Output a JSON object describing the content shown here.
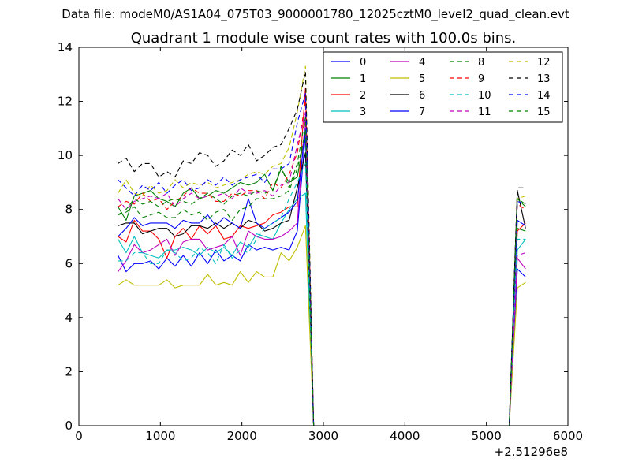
{
  "figure": {
    "suptitle": "Data file: modeM0/AS1A04_075T03_9000001780_12025cztM0_level2_quad_clean.evt"
  },
  "chart_data": {
    "type": "line",
    "title": "Quadrant 1 module wise count rates with 100.0s bins.",
    "xlabel": "",
    "ylabel": "",
    "xlim": [
      0,
      6000
    ],
    "ylim": [
      0,
      14
    ],
    "x_offset_label": "+2.51296e8",
    "xticks": [
      0,
      1000,
      2000,
      3000,
      4000,
      5000,
      6000
    ],
    "yticks": [
      0,
      2,
      4,
      6,
      8,
      10,
      12,
      14
    ],
    "grid": false,
    "legend_position": "top-right",
    "legend_columns": 4,
    "x": [
      480,
      580,
      680,
      780,
      880,
      980,
      1080,
      1180,
      1280,
      1380,
      1480,
      1580,
      1680,
      1780,
      1880,
      1980,
      2080,
      2180,
      2280,
      2380,
      2480,
      2580,
      2680,
      2780,
      2880,
      2980,
      3080,
      3180,
      3280,
      3380,
      3480,
      3580,
      3680,
      3780,
      3880,
      3980,
      4080,
      4180,
      4280,
      4380,
      4480,
      4580,
      4680,
      4780,
      4880,
      4980,
      5080,
      5180,
      5280,
      5380,
      5480
    ],
    "series": [
      {
        "name": "0",
        "color": "#0000ff",
        "dash": "solid",
        "values": [
          6.3,
          5.7,
          6.0,
          6.0,
          6.1,
          5.8,
          6.2,
          5.9,
          6.3,
          5.9,
          6.4,
          6.0,
          6.5,
          6.1,
          6.3,
          6.1,
          6.7,
          6.5,
          6.6,
          6.5,
          6.6,
          6.5,
          7.2,
          10.8,
          0,
          0,
          0,
          0,
          0,
          0,
          0,
          0,
          0,
          0,
          0,
          0,
          0,
          0,
          0,
          0,
          0,
          0,
          0,
          0,
          0,
          0,
          0,
          0,
          0,
          5.8,
          5.5
        ]
      },
      {
        "name": "1",
        "color": "#008000",
        "dash": "solid",
        "values": [
          8.1,
          7.6,
          8.5,
          8.6,
          8.7,
          8.4,
          8.3,
          8.1,
          8.6,
          8.8,
          8.4,
          8.5,
          8.7,
          8.6,
          8.8,
          9.0,
          8.9,
          9.0,
          9.3,
          8.7,
          9.5,
          9.0,
          9.2,
          10.9,
          0,
          0,
          0,
          0,
          0,
          0,
          0,
          0,
          0,
          0,
          0,
          0,
          0,
          0,
          0,
          0,
          0,
          0,
          0,
          0,
          0,
          0,
          0,
          0,
          0,
          7.3,
          7.2
        ]
      },
      {
        "name": "2",
        "color": "#ff0000",
        "dash": "solid",
        "values": [
          7.0,
          6.8,
          7.6,
          7.2,
          7.2,
          6.9,
          6.2,
          7.0,
          7.3,
          6.9,
          7.4,
          7.1,
          7.4,
          6.9,
          7.0,
          7.4,
          7.3,
          7.4,
          7.5,
          7.8,
          7.9,
          8.1,
          8.1,
          12.5,
          0,
          0,
          0,
          0,
          0,
          0,
          0,
          0,
          0,
          0,
          0,
          0,
          0,
          0,
          0,
          0,
          0,
          0,
          0,
          0,
          0,
          0,
          0,
          0,
          0,
          7.2,
          7.5
        ]
      },
      {
        "name": "3",
        "color": "#00bfbf",
        "dash": "solid",
        "values": [
          6.9,
          6.4,
          7.0,
          6.4,
          6.3,
          6.2,
          6.5,
          6.5,
          6.6,
          6.5,
          6.3,
          6.6,
          6.4,
          6.6,
          6.3,
          6.8,
          6.6,
          7.1,
          7.0,
          6.9,
          7.5,
          8.0,
          8.4,
          8.6,
          0,
          0,
          0,
          0,
          0,
          0,
          0,
          0,
          0,
          0,
          0,
          0,
          0,
          0,
          0,
          0,
          0,
          0,
          0,
          0,
          0,
          0,
          0,
          0,
          0,
          6.5,
          6.9
        ]
      },
      {
        "name": "4",
        "color": "#bf00bf",
        "dash": "solid",
        "values": [
          5.7,
          6.1,
          6.7,
          6.4,
          6.5,
          6.7,
          6.9,
          6.3,
          6.8,
          6.9,
          6.9,
          6.5,
          6.6,
          6.7,
          7.0,
          6.3,
          7.2,
          7.0,
          6.9,
          6.9,
          7.0,
          7.2,
          7.5,
          11.5,
          0,
          0,
          0,
          0,
          0,
          0,
          0,
          0,
          0,
          0,
          0,
          0,
          0,
          0,
          0,
          0,
          0,
          0,
          0,
          0,
          0,
          0,
          0,
          0,
          0,
          6.2,
          5.8
        ]
      },
      {
        "name": "5",
        "color": "#bfbf00",
        "dash": "solid",
        "values": [
          5.2,
          5.4,
          5.2,
          5.2,
          5.2,
          5.2,
          5.4,
          5.1,
          5.2,
          5.2,
          5.2,
          5.6,
          5.2,
          5.3,
          5.2,
          5.7,
          5.3,
          5.7,
          5.5,
          5.5,
          6.4,
          6.1,
          6.6,
          7.4,
          0,
          0,
          0,
          0,
          0,
          0,
          0,
          0,
          0,
          0,
          0,
          0,
          0,
          0,
          0,
          0,
          0,
          0,
          0,
          0,
          0,
          0,
          0,
          0,
          0,
          5.1,
          5.3
        ]
      },
      {
        "name": "6",
        "color": "#000000",
        "dash": "solid",
        "values": [
          7.4,
          7.5,
          7.5,
          7.1,
          7.2,
          7.3,
          7.3,
          7.0,
          7.1,
          7.4,
          7.4,
          7.3,
          7.5,
          7.3,
          7.5,
          7.3,
          7.6,
          7.5,
          7.2,
          7.3,
          7.5,
          7.6,
          8.8,
          10.1,
          0,
          0,
          0,
          0,
          0,
          0,
          0,
          0,
          0,
          0,
          0,
          0,
          0,
          0,
          0,
          0,
          0,
          0,
          0,
          0,
          0,
          0,
          0,
          0,
          0,
          8.7,
          7.3
        ]
      },
      {
        "name": "7",
        "color": "#0000ff",
        "dash": "solid",
        "values": [
          7.0,
          7.3,
          7.7,
          7.4,
          7.5,
          7.5,
          7.5,
          7.3,
          7.6,
          7.5,
          7.5,
          7.8,
          7.4,
          7.7,
          7.5,
          7.3,
          8.4,
          7.5,
          7.3,
          7.5,
          7.7,
          7.9,
          8.3,
          11.0,
          0,
          0,
          0,
          0,
          0,
          0,
          0,
          0,
          0,
          0,
          0,
          0,
          0,
          0,
          0,
          0,
          0,
          0,
          0,
          0,
          0,
          0,
          0,
          0,
          0,
          7.6,
          7.4
        ]
      },
      {
        "name": "8",
        "color": "#008000",
        "dash": "dashed",
        "values": [
          7.8,
          7.9,
          8.1,
          7.7,
          7.8,
          7.9,
          7.7,
          7.7,
          8.0,
          7.8,
          7.9,
          7.6,
          7.9,
          8.0,
          7.6,
          8.0,
          8.1,
          8.4,
          8.4,
          8.4,
          8.5,
          8.7,
          9.5,
          10.9,
          0,
          0,
          0,
          0,
          0,
          0,
          0,
          0,
          0,
          0,
          0,
          0,
          0,
          0,
          0,
          0,
          0,
          0,
          0,
          0,
          0,
          0,
          0,
          0,
          0,
          8.4,
          8.2
        ]
      },
      {
        "name": "9",
        "color": "#ff0000",
        "dash": "dashed",
        "values": [
          8.1,
          8.3,
          8.2,
          8.6,
          8.3,
          8.4,
          8.0,
          8.3,
          8.5,
          8.8,
          8.6,
          8.6,
          8.3,
          8.3,
          8.6,
          8.5,
          8.7,
          8.7,
          8.4,
          9.0,
          8.8,
          9.3,
          10.1,
          12.0,
          0,
          0,
          0,
          0,
          0,
          0,
          0,
          0,
          0,
          0,
          0,
          0,
          0,
          0,
          0,
          0,
          0,
          0,
          0,
          0,
          0,
          0,
          0,
          0,
          0,
          8.2,
          8.0
        ]
      },
      {
        "name": "10",
        "color": "#00bfbf",
        "dash": "dashed",
        "values": [
          6.1,
          6.1,
          6.4,
          6.4,
          6.0,
          6.0,
          6.5,
          6.4,
          6.1,
          6.2,
          6.6,
          6.4,
          6.0,
          6.7,
          6.2,
          6.5,
          6.4,
          6.9,
          7.3,
          7.5,
          7.7,
          8.4,
          9.0,
          9.7,
          0,
          0,
          0,
          0,
          0,
          0,
          0,
          0,
          0,
          0,
          0,
          0,
          0,
          0,
          0,
          0,
          0,
          0,
          0,
          0,
          0,
          0,
          0,
          0,
          0,
          6.9,
          6.9
        ]
      },
      {
        "name": "11",
        "color": "#bf00bf",
        "dash": "dashed",
        "values": [
          8.4,
          8.0,
          8.3,
          8.4,
          8.5,
          8.4,
          8.6,
          8.1,
          8.4,
          8.6,
          8.4,
          8.5,
          8.5,
          8.6,
          8.4,
          8.8,
          8.6,
          8.6,
          8.7,
          8.5,
          8.9,
          9.0,
          10.4,
          11.6,
          0,
          0,
          0,
          0,
          0,
          0,
          0,
          0,
          0,
          0,
          0,
          0,
          0,
          0,
          0,
          0,
          0,
          0,
          0,
          0,
          0,
          0,
          0,
          0,
          0,
          6.3,
          6.4
        ]
      },
      {
        "name": "12",
        "color": "#bfbf00",
        "dash": "dashed",
        "values": [
          8.6,
          9.1,
          8.6,
          8.5,
          8.9,
          8.6,
          8.7,
          9.1,
          8.8,
          9.0,
          8.9,
          9.0,
          8.8,
          8.9,
          9.0,
          9.1,
          9.3,
          9.4,
          9.3,
          9.6,
          9.7,
          10.3,
          11.6,
          13.3,
          0,
          0,
          0,
          0,
          0,
          0,
          0,
          0,
          0,
          0,
          0,
          0,
          0,
          0,
          0,
          0,
          0,
          0,
          0,
          0,
          0,
          0,
          0,
          0,
          0,
          8.4,
          8.5
        ]
      },
      {
        "name": "13",
        "color": "#000000",
        "dash": "dashed",
        "values": [
          9.7,
          9.9,
          9.4,
          9.7,
          9.7,
          9.2,
          9.4,
          9.2,
          9.8,
          9.7,
          10.1,
          10.0,
          9.6,
          9.8,
          10.2,
          10.0,
          10.4,
          9.8,
          10.0,
          10.3,
          10.4,
          11.0,
          11.7,
          13.1,
          0,
          0,
          0,
          0,
          0,
          0,
          0,
          0,
          0,
          0,
          0,
          0,
          0,
          0,
          0,
          0,
          0,
          0,
          0,
          0,
          0,
          0,
          0,
          0,
          0,
          8.8,
          8.8
        ]
      },
      {
        "name": "14",
        "color": "#0000ff",
        "dash": "dashed",
        "values": [
          9.1,
          8.8,
          8.5,
          8.9,
          8.7,
          9.0,
          8.6,
          8.9,
          9.1,
          8.7,
          8.8,
          9.1,
          8.9,
          9.2,
          8.9,
          9.1,
          9.2,
          9.3,
          9.0,
          9.5,
          9.5,
          9.7,
          11.2,
          12.3,
          0,
          0,
          0,
          0,
          0,
          0,
          0,
          0,
          0,
          0,
          0,
          0,
          0,
          0,
          0,
          0,
          0,
          0,
          0,
          0,
          0,
          0,
          0,
          0,
          0,
          8.3,
          8.2
        ]
      },
      {
        "name": "15",
        "color": "#008000",
        "dash": "dashed",
        "values": [
          7.8,
          8.0,
          8.4,
          8.2,
          8.3,
          8.1,
          8.3,
          8.4,
          8.3,
          8.2,
          8.4,
          8.6,
          8.4,
          8.2,
          8.5,
          8.6,
          8.5,
          8.7,
          8.6,
          8.7,
          9.6,
          8.8,
          9.7,
          11.4,
          0,
          0,
          0,
          0,
          0,
          0,
          0,
          0,
          0,
          0,
          0,
          0,
          0,
          0,
          0,
          0,
          0,
          0,
          0,
          0,
          0,
          0,
          0,
          0,
          0,
          8.4,
          8.1
        ]
      }
    ]
  }
}
